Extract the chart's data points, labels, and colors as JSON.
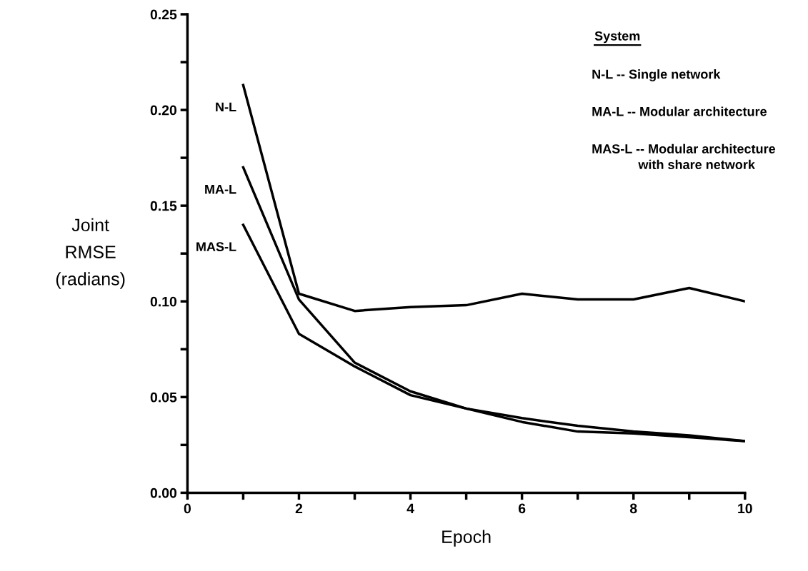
{
  "chart_data": {
    "type": "line",
    "xlabel": "Epoch",
    "ylabel": "Joint\nRMSE\n(radians)",
    "x": [
      1,
      2,
      3,
      4,
      5,
      6,
      7,
      8,
      9,
      10
    ],
    "series": [
      {
        "name": "N-L",
        "color": "#000000",
        "values": [
          0.213,
          0.104,
          0.095,
          0.097,
          0.098,
          0.104,
          0.101,
          0.101,
          0.107,
          0.1
        ]
      },
      {
        "name": "MA-L",
        "color": "#000000",
        "values": [
          0.17,
          0.101,
          0.068,
          0.053,
          0.044,
          0.039,
          0.035,
          0.032,
          0.03,
          0.027
        ]
      },
      {
        "name": "MAS-L",
        "color": "#000000",
        "values": [
          0.14,
          0.083,
          0.066,
          0.051,
          0.044,
          0.037,
          0.032,
          0.031,
          0.029,
          0.027
        ]
      }
    ],
    "xlim": [
      0,
      10
    ],
    "ylim": [
      0,
      0.25
    ],
    "xticks": [
      0,
      {
        "value": 1,
        "label": null
      },
      2,
      {
        "value": 3,
        "label": null
      },
      4,
      {
        "value": 5,
        "label": null
      },
      6,
      {
        "value": 7,
        "label": null
      },
      8,
      {
        "value": 9,
        "label": null
      },
      10
    ],
    "yticks": [
      {
        "value": 0,
        "label": "0.00"
      },
      {
        "value": 0.025,
        "label": null
      },
      0.05,
      {
        "value": 0.075,
        "label": null
      },
      {
        "value": 0.1,
        "label": "0.10"
      },
      {
        "value": 0.125,
        "label": null
      },
      0.15,
      {
        "value": 0.175,
        "label": null
      },
      {
        "value": 0.2,
        "label": "0.20"
      },
      {
        "value": 0.225,
        "label": null
      },
      0.25
    ],
    "legend_title": "System",
    "annotations": [
      "N-L -- Single network",
      "MA-L -- Modular architecture",
      "MAS-L -- Modular architecture\n             with share network"
    ],
    "grid": false,
    "marker": "none",
    "line_style": "solid"
  }
}
